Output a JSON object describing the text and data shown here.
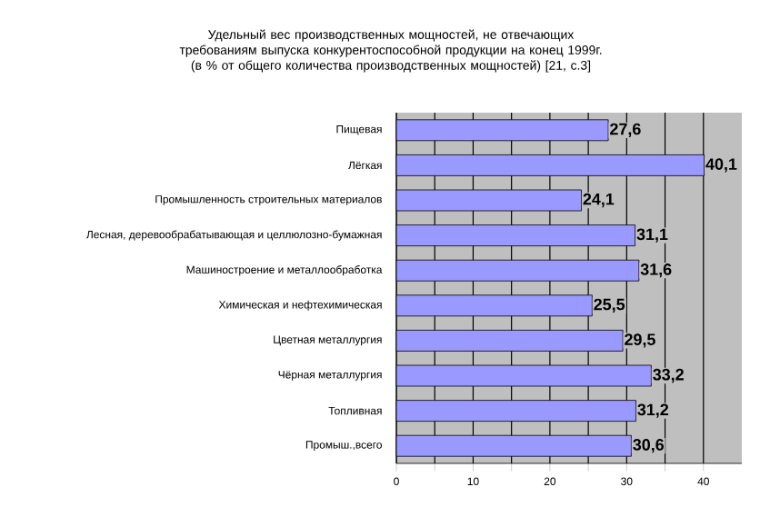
{
  "chart_data": {
    "type": "bar",
    "orientation": "horizontal",
    "title": "Удельный вес производственных мощностей, не отвечающих требованиям выпуска конкурентоспособной продукции на конец 1999г. (в % от общего количества производственных мощностей) [21, с.3]",
    "categories": [
      "Пищевая",
      "Лёгкая",
      "Промышленность строительных материалов",
      "Лесная, деревообрабатывающая и целлюлозно-бумажная",
      "Машиностроение и металлообработка",
      "Химическая и нефтехимическая",
      "Цветная металлургия",
      "Чёрная металлургия",
      "Топливная",
      "Промыш.,всего"
    ],
    "values": [
      27.6,
      40.1,
      24.1,
      31.1,
      31.6,
      25.5,
      29.5,
      33.2,
      31.2,
      30.6
    ],
    "value_labels": [
      "27,6",
      "40,1",
      "24,1",
      "31,1",
      "31,6",
      "25,5",
      "29,5",
      "33,2",
      "31,2",
      "30,6"
    ],
    "color": "#9999ff",
    "xlim": [
      0,
      45
    ],
    "xticks": [
      0,
      {
        "value": 5,
        "label": null
      },
      10,
      {
        "value": 15,
        "label": null
      },
      20,
      {
        "value": 25,
        "label": null
      },
      30,
      {
        "value": 35,
        "label": null
      },
      40
    ],
    "grid": "x"
  }
}
